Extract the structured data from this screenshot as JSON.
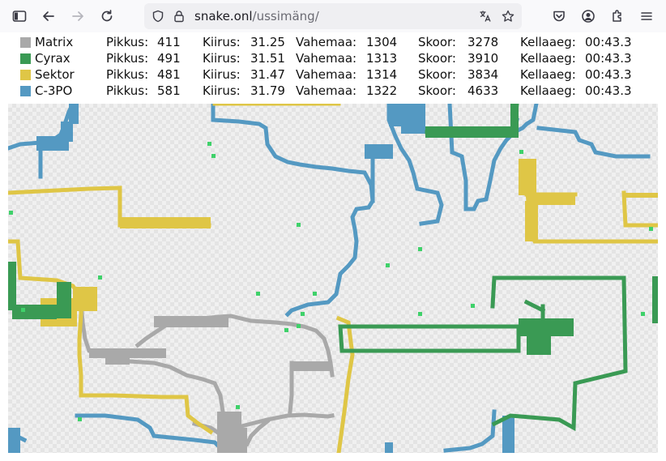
{
  "browser": {
    "url_host": "snake.onl",
    "url_path": "/ussimäng/"
  },
  "players": [
    {
      "name": "Matrix",
      "color": "#a9a9a9",
      "length_label": "Pikkus:",
      "length": "411",
      "speed_label": "Kiirus:",
      "speed": "31.25",
      "distance_label": "Vahemaa:",
      "distance": "1304",
      "score_label": "Skoor:",
      "score": "3278",
      "time_label": "Kellaaeg:",
      "time": "00:43.3"
    },
    {
      "name": "Cyrax",
      "color": "#3a9a54",
      "length_label": "Pikkus:",
      "length": "491",
      "speed_label": "Kiirus:",
      "speed": "31.51",
      "distance_label": "Vahemaa:",
      "distance": "1313",
      "score_label": "Skoor:",
      "score": "3910",
      "time_label": "Kellaaeg:",
      "time": "00:43.3"
    },
    {
      "name": "Sektor",
      "color": "#dfc646",
      "length_label": "Pikkus:",
      "length": "481",
      "speed_label": "Kiirus:",
      "speed": "31.47",
      "distance_label": "Vahemaa:",
      "distance": "1314",
      "score_label": "Skoor:",
      "score": "3834",
      "time_label": "Kellaaeg:",
      "time": "00:43.3"
    },
    {
      "name": "C-3PO",
      "color": "#5499c2",
      "length_label": "Pikkus:",
      "length": "581",
      "speed_label": "Kiirus:",
      "speed": "31.79",
      "distance_label": "Vahemaa:",
      "distance": "1322",
      "score_label": "Skoor:",
      "score": "4633",
      "time_label": "Kellaaeg:",
      "time": "00:43.3"
    }
  ],
  "food_color": "#3fd16a"
}
